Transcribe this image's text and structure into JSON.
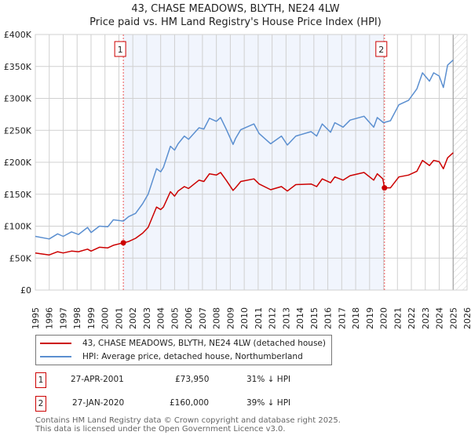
{
  "title": "43, CHASE MEADOWS, BLYTH, NE24 4LW",
  "subtitle": "Price paid vs. HM Land Registry's House Price Index (HPI)",
  "chart_data": {
    "type": "line",
    "ylim": [
      0,
      400000
    ],
    "xlim": [
      1995,
      2026
    ],
    "y_ticks": [
      {
        "v": 0,
        "label": "£0"
      },
      {
        "v": 50000,
        "label": "£50K"
      },
      {
        "v": 100000,
        "label": "£100K"
      },
      {
        "v": 150000,
        "label": "£150K"
      },
      {
        "v": 200000,
        "label": "£200K"
      },
      {
        "v": 250000,
        "label": "£250K"
      },
      {
        "v": 300000,
        "label": "£300K"
      },
      {
        "v": 350000,
        "label": "£350K"
      },
      {
        "v": 400000,
        "label": "£400K"
      }
    ],
    "x_ticks": [
      "1995",
      "1996",
      "1997",
      "1998",
      "1999",
      "2000",
      "2001",
      "2002",
      "2003",
      "2004",
      "2005",
      "2006",
      "2007",
      "2008",
      "2009",
      "2010",
      "2011",
      "2012",
      "2013",
      "2014",
      "2015",
      "2016",
      "2017",
      "2018",
      "2019",
      "2020",
      "2021",
      "2022",
      "2023",
      "2024",
      "2025",
      "2026"
    ],
    "grid": true,
    "shaded_range": [
      2001.32,
      2020.07
    ],
    "hatched_from": 2025.0,
    "colors": {
      "red": "#cc0000",
      "blue": "#5b8fd0",
      "shade": "#f1f5fd"
    },
    "series": [
      {
        "name": "43, CHASE MEADOWS, BLYTH, NE24 4LW (detached house)",
        "color": "#cc0000",
        "x": [
          1995,
          1996,
          1996.6,
          1997,
          1997.6,
          1998.1,
          1998.75,
          1999,
          1999.6,
          2000.2,
          2000.6,
          2001.32,
          2001.7,
          2002.2,
          2002.7,
          2003.1,
          2003.7,
          2004,
          2004.2,
          2004.7,
          2005,
          2005.25,
          2005.7,
          2006,
          2006.75,
          2007.1,
          2007.5,
          2008,
          2008.3,
          2008.7,
          2009.2,
          2009.37,
          2009.75,
          2010.7,
          2011.07,
          2011.9,
          2012.67,
          2013.1,
          2013.7,
          2014.8,
          2015.2,
          2015.6,
          2016.2,
          2016.5,
          2017.1,
          2017.6,
          2018.6,
          2019.3,
          2019.55,
          2019.95,
          2020.07,
          2020.5,
          2021.1,
          2021.8,
          2022.4,
          2022.8,
          2023.3,
          2023.6,
          2024,
          2024.3,
          2024.6,
          2025.0
        ],
        "y": [
          58,
          55,
          60,
          58,
          61,
          60,
          64,
          61,
          67,
          66,
          70,
          73.95,
          76,
          81,
          89,
          98,
          130,
          126,
          130,
          154,
          147,
          155,
          162,
          159,
          172,
          170,
          182,
          180,
          184,
          172,
          156,
          160,
          170,
          174,
          166,
          157,
          162,
          155,
          165,
          166,
          162,
          174,
          168,
          177,
          172,
          179,
          184,
          172,
          182,
          174,
          160,
          160,
          177,
          180,
          186,
          203,
          195,
          203,
          201,
          190,
          207,
          215
        ]
      },
      {
        "name": "HPI: Average price, detached house, Northumberland",
        "color": "#5b8fd0",
        "x": [
          1995,
          1996,
          1996.6,
          1997,
          1997.6,
          1998.1,
          1998.75,
          1999,
          1999.6,
          2000.2,
          2000.6,
          2001.32,
          2001.7,
          2002.2,
          2002.7,
          2003.1,
          2003.7,
          2004,
          2004.2,
          2004.7,
          2005,
          2005.25,
          2005.7,
          2006,
          2006.75,
          2007.1,
          2007.5,
          2008,
          2008.3,
          2008.7,
          2009.2,
          2009.37,
          2009.75,
          2010.7,
          2011.07,
          2011.9,
          2012.67,
          2013.1,
          2013.7,
          2014.8,
          2015.2,
          2015.6,
          2016.2,
          2016.5,
          2017.1,
          2017.6,
          2018.6,
          2019.3,
          2019.55,
          2020.0,
          2020.5,
          2021.1,
          2021.8,
          2022.4,
          2022.8,
          2023.3,
          2023.6,
          2024,
          2024.3,
          2024.6,
          2025.0
        ],
        "y": [
          84,
          80,
          88,
          84,
          91,
          87,
          98,
          90,
          100,
          99,
          110,
          108,
          115,
          120,
          135,
          150,
          190,
          185,
          192,
          225,
          219,
          229,
          241,
          236,
          254,
          252,
          269,
          264,
          270,
          252,
          228,
          237,
          251,
          260,
          245,
          229,
          241,
          227,
          241,
          248,
          241,
          260,
          247,
          262,
          255,
          266,
          272,
          255,
          270,
          262,
          265,
          290,
          297,
          315,
          340,
          327,
          340,
          335,
          317,
          352,
          360
        ]
      }
    ],
    "y_units": "thousands GBP",
    "annotations": [
      {
        "id": "1",
        "x": 2001.32,
        "y": 73.95
      },
      {
        "id": "2",
        "x": 2020.07,
        "y": 160
      }
    ]
  },
  "transactions": [
    {
      "id": "1",
      "date": "27-APR-2001",
      "price": "£73,950",
      "hpi": "31% ↓ HPI"
    },
    {
      "id": "2",
      "date": "27-JAN-2020",
      "price": "£160,000",
      "hpi": "39% ↓ HPI"
    }
  ],
  "footer": {
    "line1": "Contains HM Land Registry data © Crown copyright and database right 2025.",
    "line2": "This data is licensed under the Open Government Licence v3.0."
  }
}
